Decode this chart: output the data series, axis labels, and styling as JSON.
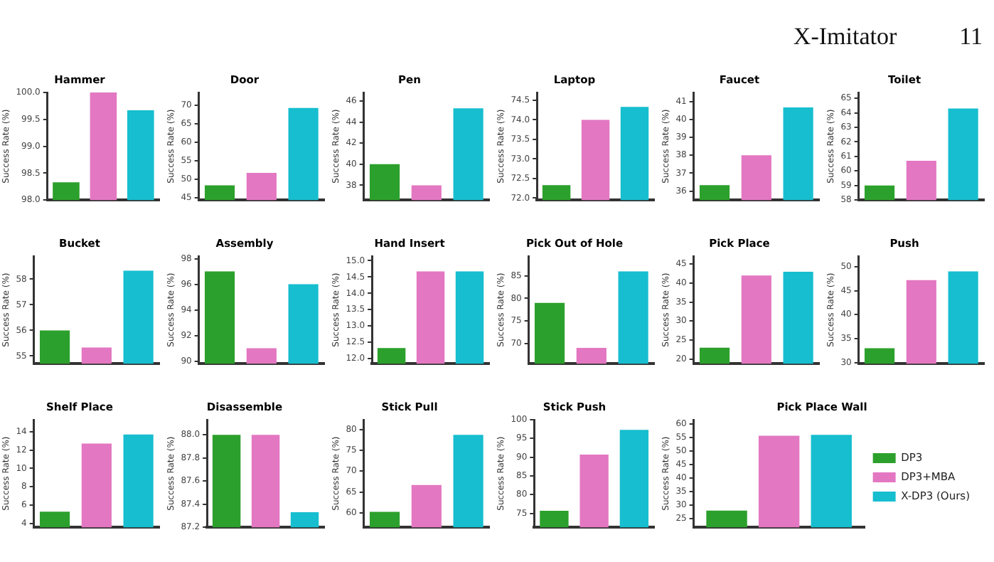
{
  "chart_data": [
    {
      "type": "bar",
      "title": "Hammer",
      "ylabel": "Success Rate (%)",
      "categories": [
        null,
        null,
        null
      ],
      "colors": [
        "#2ca02c",
        "#e377c2",
        "#17becf"
      ],
      "values": [
        98.33,
        100,
        99.67
      ],
      "ylim": [
        98,
        100
      ],
      "yticks": [
        {
          "value": 98,
          "label": "98.0"
        },
        98.5,
        {
          "value": 99,
          "label": "99.0"
        },
        99.5,
        {
          "value": 100,
          "label": "100.0"
        }
      ]
    },
    {
      "type": "bar",
      "title": "Door",
      "ylabel": "Success Rate (%)",
      "categories": [
        null,
        null,
        null
      ],
      "colors": [
        "#2ca02c",
        "#e377c2",
        "#17becf"
      ],
      "values": [
        48.3,
        51.7,
        69.3
      ],
      "ylim": [
        44.3,
        73.5
      ],
      "yticks": [
        45,
        50,
        55,
        60,
        65,
        70
      ]
    },
    {
      "type": "bar",
      "title": "Pen",
      "ylabel": "Success Rate (%)",
      "categories": [
        null,
        null,
        null
      ],
      "colors": [
        "#2ca02c",
        "#e377c2",
        "#17becf"
      ],
      "values": [
        40,
        38,
        45.3
      ],
      "ylim": [
        36.6,
        46.8
      ],
      "yticks": [
        38,
        40,
        42,
        44,
        46
      ]
    },
    {
      "type": "bar",
      "title": "Laptop",
      "ylabel": "Success Rate (%)",
      "categories": [
        null,
        null,
        null
      ],
      "colors": [
        "#2ca02c",
        "#e377c2",
        "#17becf"
      ],
      "values": [
        72.33,
        74,
        74.33
      ],
      "ylim": [
        71.95,
        74.7
      ],
      "yticks": [
        {
          "value": 72,
          "label": "72.0"
        },
        72.5,
        {
          "value": 73,
          "label": "73.0"
        },
        73.5,
        {
          "value": 74,
          "label": "74.0"
        },
        74.5
      ]
    },
    {
      "type": "bar",
      "title": "Faucet",
      "ylabel": "Success Rate (%)",
      "categories": [
        null,
        null,
        null
      ],
      "colors": [
        "#2ca02c",
        "#e377c2",
        "#17becf"
      ],
      "values": [
        36.33,
        38,
        40.67
      ],
      "ylim": [
        35.5,
        41.5
      ],
      "yticks": [
        36,
        37,
        38,
        39,
        40,
        41
      ]
    },
    {
      "type": "bar",
      "title": "Toilet",
      "ylabel": "Success Rate (%)",
      "categories": [
        null,
        null,
        null
      ],
      "colors": [
        "#2ca02c",
        "#e377c2",
        "#17becf"
      ],
      "values": [
        59,
        60.7,
        64.3
      ],
      "ylim": [
        58,
        65.4
      ],
      "yticks": [
        58,
        59,
        60,
        61,
        62,
        63,
        64,
        65
      ]
    },
    {
      "type": "bar",
      "title": "Bucket",
      "ylabel": "Success Rate (%)",
      "categories": [
        null,
        null,
        null
      ],
      "colors": [
        "#2ca02c",
        "#e377c2",
        "#17becf"
      ],
      "values": [
        56,
        55.33,
        58.33
      ],
      "ylim": [
        54.7,
        58.9
      ],
      "yticks": [
        55,
        56,
        57,
        58
      ]
    },
    {
      "type": "bar",
      "title": "Assembly",
      "ylabel": "Success Rate (%)",
      "categories": [
        null,
        null,
        null
      ],
      "colors": [
        "#2ca02c",
        "#e377c2",
        "#17becf"
      ],
      "values": [
        97,
        91,
        96
      ],
      "ylim": [
        89.8,
        98.2
      ],
      "yticks": [
        90,
        92,
        94,
        96,
        98
      ]
    },
    {
      "type": "bar",
      "title": "Hand Insert",
      "ylabel": "Success Rate (%)",
      "categories": [
        null,
        null,
        null
      ],
      "colors": [
        "#2ca02c",
        "#e377c2",
        "#17becf"
      ],
      "values": [
        12.33,
        14.67,
        14.67
      ],
      "ylim": [
        11.85,
        15.14
      ],
      "yticks": [
        {
          "value": 12,
          "label": "12.0"
        },
        12.5,
        {
          "value": 13,
          "label": "13.0"
        },
        13.5,
        {
          "value": 14,
          "label": "14.0"
        },
        14.5,
        {
          "value": 15,
          "label": "15.0"
        }
      ]
    },
    {
      "type": "bar",
      "title": "Pick Out of Hole",
      "ylabel": "Success Rate (%)",
      "categories": [
        null,
        null,
        null
      ],
      "colors": [
        "#2ca02c",
        "#e377c2",
        "#17becf"
      ],
      "values": [
        79,
        69,
        86
      ],
      "ylim": [
        65.5,
        89.4
      ],
      "yticks": [
        70,
        75,
        80,
        85
      ]
    },
    {
      "type": "bar",
      "title": "Pick Place",
      "ylabel": "Success Rate (%)",
      "categories": [
        null,
        null,
        null
      ],
      "colors": [
        "#2ca02c",
        "#e377c2",
        "#17becf"
      ],
      "values": [
        23,
        42,
        43
      ],
      "ylim": [
        18.8,
        47.1
      ],
      "yticks": [
        20,
        25,
        30,
        35,
        40,
        45
      ]
    },
    {
      "type": "bar",
      "title": "Push",
      "ylabel": "Success Rate (%)",
      "categories": [
        null,
        null,
        null
      ],
      "colors": [
        "#2ca02c",
        "#e377c2",
        "#17becf"
      ],
      "values": [
        33,
        47.2,
        49
      ],
      "ylim": [
        29.8,
        52.2
      ],
      "yticks": [
        30,
        35,
        40,
        45,
        50
      ]
    },
    {
      "type": "bar",
      "title": "Shelf Place",
      "ylabel": "Success Rate (%)",
      "categories": [
        null,
        null,
        null
      ],
      "colors": [
        "#2ca02c",
        "#e377c2",
        "#17becf"
      ],
      "values": [
        5.3,
        12.7,
        13.7
      ],
      "ylim": [
        3.6,
        15.3
      ],
      "yticks": [
        4,
        6,
        8,
        10,
        12,
        14
      ]
    },
    {
      "type": "bar",
      "title": "Disassemble",
      "ylabel": "Success Rate (%)",
      "categories": [
        null,
        null,
        null
      ],
      "colors": [
        "#2ca02c",
        "#e377c2",
        "#17becf"
      ],
      "values": [
        88,
        88,
        87.33
      ],
      "ylim": [
        87.2,
        88.13
      ],
      "yticks": [
        87.2,
        87.4,
        87.6,
        87.8,
        {
          "value": 88,
          "label": "88.0"
        }
      ]
    },
    {
      "type": "bar",
      "title": "Stick Pull",
      "ylabel": "Success Rate (%)",
      "categories": [
        null,
        null,
        null
      ],
      "colors": [
        "#2ca02c",
        "#e377c2",
        "#17becf"
      ],
      "values": [
        60.3,
        66.7,
        78.7
      ],
      "ylim": [
        56.6,
        82.3
      ],
      "yticks": [
        60,
        65,
        70,
        75,
        80
      ]
    },
    {
      "type": "bar",
      "title": "Stick Push",
      "ylabel": "Success Rate (%)",
      "categories": [
        null,
        null,
        null
      ],
      "colors": [
        "#2ca02c",
        "#e377c2",
        "#17becf"
      ],
      "values": [
        75.7,
        90.7,
        97.3
      ],
      "ylim": [
        71.3,
        100
      ],
      "yticks": [
        75,
        80,
        85,
        90,
        95,
        100
      ]
    },
    {
      "type": "bar",
      "title": "Pick Place Wall",
      "ylabel": "Success Rate (%)",
      "categories": [
        null
      ],
      "legend": "right",
      "series": [
        {
          "name": "DP3",
          "color": "#2ca02c",
          "values": [
            28
          ]
        },
        {
          "name": "DP3+MBA",
          "color": "#e377c2",
          "values": [
            55.7
          ]
        },
        {
          "name": "X-DP3 (Ours)",
          "color": "#17becf",
          "values": [
            56
          ]
        }
      ],
      "ylim": [
        21.8,
        61.6
      ],
      "yticks": [
        25,
        30,
        35,
        40,
        45,
        50,
        55,
        60
      ]
    },
    {
      "type": "other",
      "title": "X-Imitator",
      "annotations": [
        "11"
      ]
    }
  ]
}
